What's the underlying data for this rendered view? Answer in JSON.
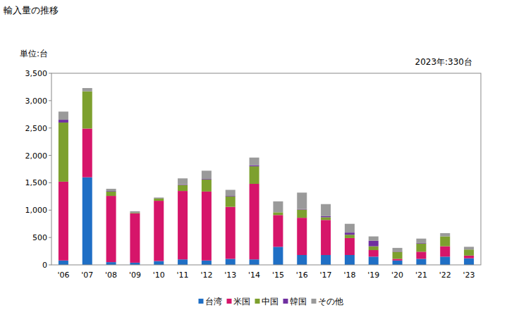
{
  "chart_data": {
    "type": "bar",
    "title": "輸入量の推移",
    "ylabel": "単位:台",
    "annotations": [
      "2023年:330台"
    ],
    "stacked": true,
    "grid": false,
    "legend": "bottom",
    "categories": [
      "'06",
      "'07",
      "'08",
      "'09",
      "'10",
      "'11",
      "'12",
      "'13",
      "'14",
      "'15",
      "'16",
      "'17",
      "'18",
      "'19",
      "'20",
      "'21",
      "'22",
      "'23"
    ],
    "ylim": [
      0,
      3500
    ],
    "yticks": [
      0,
      500,
      {
        "value": 1000,
        "label": "1,000"
      },
      {
        "value": 1500,
        "label": "1,500"
      },
      {
        "value": 2000,
        "label": "2,000"
      },
      {
        "value": 2500,
        "label": "2,500"
      },
      {
        "value": 3000,
        "label": "3,000"
      },
      {
        "value": 3500,
        "label": "3,500"
      }
    ],
    "series": [
      {
        "name": "台湾",
        "color": "#1f6fc5",
        "values": [
          80,
          1600,
          50,
          40,
          70,
          100,
          80,
          110,
          100,
          330,
          180,
          180,
          180,
          150,
          80,
          110,
          150,
          120
        ]
      },
      {
        "name": "米国",
        "color": "#d6156a",
        "values": [
          1440,
          890,
          1210,
          900,
          1100,
          1250,
          1260,
          950,
          1380,
          580,
          680,
          640,
          310,
          120,
          30,
          130,
          190,
          50
        ]
      },
      {
        "name": "中国",
        "color": "#7da02e",
        "values": [
          1080,
          680,
          80,
          10,
          40,
          110,
          220,
          190,
          320,
          50,
          150,
          50,
          60,
          70,
          130,
          150,
          180,
          110
        ]
      },
      {
        "name": "韓国",
        "color": "#7030a0",
        "values": [
          50,
          0,
          10,
          0,
          0,
          10,
          10,
          10,
          20,
          0,
          10,
          20,
          40,
          100,
          10,
          10,
          0,
          0
        ]
      },
      {
        "name": "その他",
        "color": "#9a9a9a",
        "values": [
          150,
          60,
          40,
          30,
          20,
          110,
          150,
          110,
          140,
          200,
          300,
          220,
          160,
          80,
          60,
          80,
          60,
          50
        ]
      }
    ]
  }
}
